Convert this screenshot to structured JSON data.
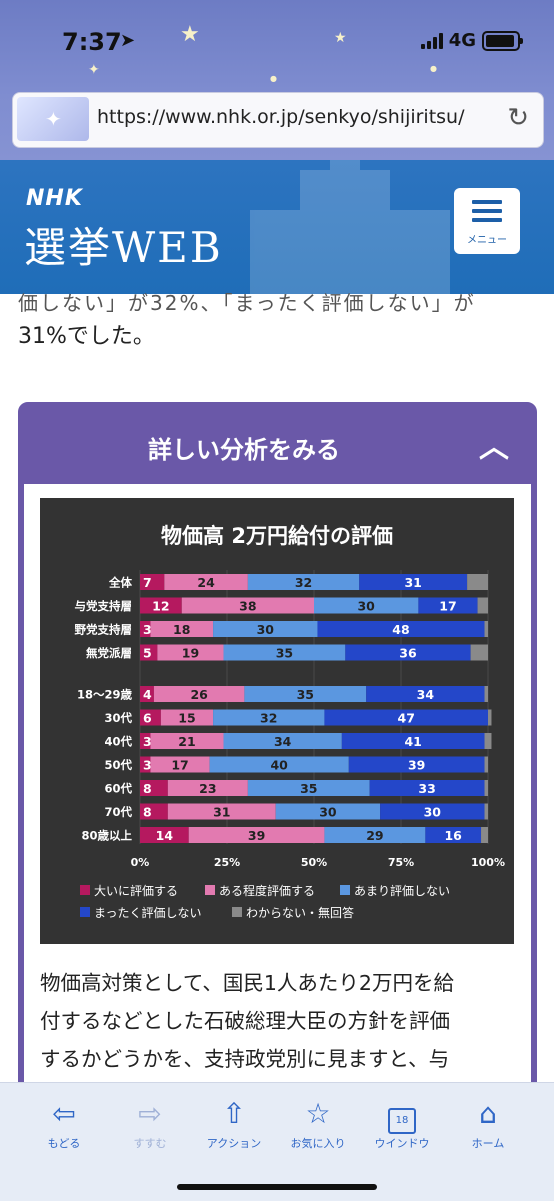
{
  "status": {
    "time": "7:37",
    "network": "4G"
  },
  "browser": {
    "url": "https://www.nhk.or.jp/senkyo/shijiritsu/"
  },
  "header": {
    "logo": "NHK",
    "title": "選挙WEB",
    "menu_label": "メニュー"
  },
  "article": {
    "partial_line": "価しない」が32%、「まったく評価しない」が",
    "line1": "31%でした。",
    "after_chart": [
      "物価高対策として、国民1人あたり2万円を給",
      "付するなどとした石破総理大臣の方針を評価",
      "するかどうかを、支持政党別に見ますと、与"
    ]
  },
  "panel": {
    "title": "詳しい分析をみる"
  },
  "chart_data": {
    "type": "bar",
    "orientation": "horizontal-stacked-100",
    "title": "物価高 2万円給付の評価",
    "categories": [
      "全体",
      "与党支持層",
      "野党支持層",
      "無党派層",
      "18〜29歳",
      "30代",
      "40代",
      "50代",
      "60代",
      "70代",
      "80歳以上"
    ],
    "group_break_after": 3,
    "series": [
      {
        "name": "大いに評価する",
        "color": "#b5195f",
        "values": [
          7,
          12,
          3,
          5,
          4,
          6,
          3,
          3,
          8,
          8,
          14
        ]
      },
      {
        "name": "ある程度評価する",
        "color": "#e27ab0",
        "values": [
          24,
          38,
          18,
          19,
          26,
          15,
          21,
          17,
          23,
          31,
          39
        ]
      },
      {
        "name": "あまり評価しない",
        "color": "#5b97e0",
        "values": [
          32,
          30,
          30,
          35,
          35,
          32,
          34,
          40,
          35,
          30,
          29
        ]
      },
      {
        "name": "まったく評価しない",
        "color": "#2447c9",
        "values": [
          31,
          17,
          48,
          36,
          34,
          47,
          41,
          39,
          33,
          30,
          16
        ]
      },
      {
        "name": "わからない・無回答",
        "color": "#8a8a8a",
        "values": [
          6,
          3,
          1,
          5,
          1,
          1,
          2,
          1,
          1,
          1,
          2
        ]
      }
    ],
    "xlim": [
      0,
      100
    ],
    "xticks": [
      "0%",
      "25%",
      "50%",
      "75%",
      "100%"
    ],
    "legend_position": "bottom"
  },
  "toolbar": {
    "items": [
      {
        "label": "もどる",
        "icon": "back-arrow-icon"
      },
      {
        "label": "すすむ",
        "icon": "forward-arrow-icon"
      },
      {
        "label": "アクション",
        "icon": "share-icon"
      },
      {
        "label": "お気に入り",
        "icon": "star-icon"
      },
      {
        "label": "ウインドウ",
        "icon": "windows-icon",
        "count": "18"
      },
      {
        "label": "ホーム",
        "icon": "home-icon"
      }
    ]
  }
}
